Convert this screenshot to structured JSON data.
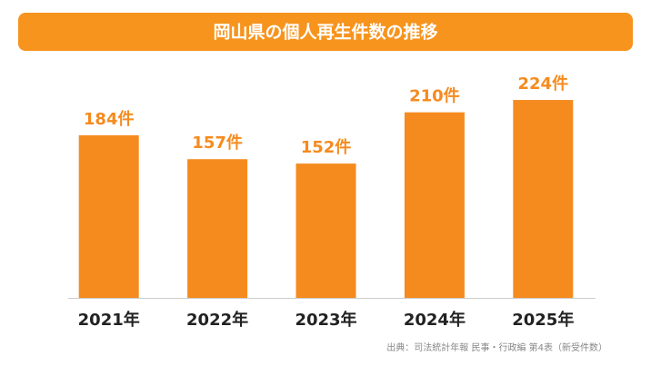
{
  "chart_data": {
    "type": "bar",
    "title": "岡山県の個人再生件数の推移",
    "categories": [
      "2021年",
      "2022年",
      "2023年",
      "2024年",
      "2025年"
    ],
    "values": [
      184,
      157,
      152,
      210,
      224
    ],
    "value_labels": [
      "184件",
      "157件",
      "152件",
      "210件",
      "224件"
    ],
    "color": "#f58b1f",
    "source": "出典：司法統計年報 民事・行政編 第4表（新受件数）"
  }
}
